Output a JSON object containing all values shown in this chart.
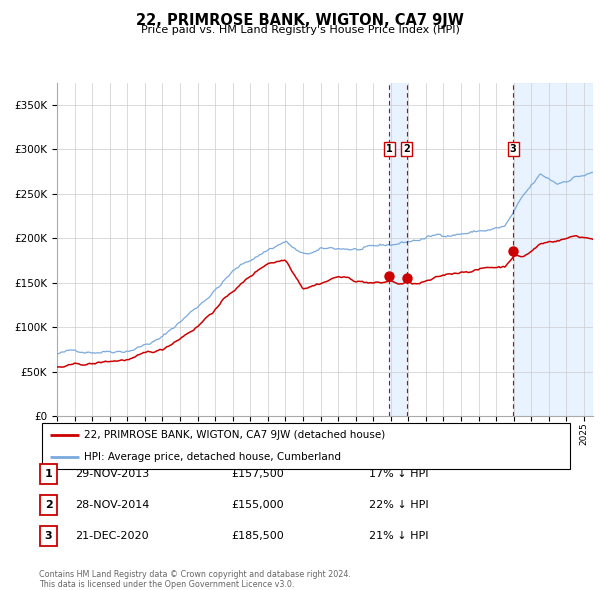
{
  "title": "22, PRIMROSE BANK, WIGTON, CA7 9JW",
  "subtitle": "Price paid vs. HM Land Registry's House Price Index (HPI)",
  "hpi_color": "#7aaadd",
  "price_color": "#cc0000",
  "marker_color": "#cc0000",
  "vline_color": "#cc0000",
  "shade_color": "#ddeeff",
  "legend_label_price": "22, PRIMROSE BANK, WIGTON, CA7 9JW (detached house)",
  "legend_label_hpi": "HPI: Average price, detached house, Cumberland",
  "transactions": [
    {
      "id": 1,
      "date_str": "29-NOV-2013",
      "year": 2013.91,
      "price": 157500,
      "pct": "17%"
    },
    {
      "id": 2,
      "date_str": "28-NOV-2014",
      "year": 2014.91,
      "price": 155000,
      "pct": "22%"
    },
    {
      "id": 3,
      "date_str": "21-DEC-2020",
      "year": 2020.97,
      "price": 185500,
      "pct": "21%"
    }
  ],
  "footer": "Contains HM Land Registry data © Crown copyright and database right 2024.\nThis data is licensed under the Open Government Licence v3.0.",
  "ylim": [
    0,
    375000
  ],
  "xlim_start": 1995.0,
  "xlim_end": 2025.5
}
